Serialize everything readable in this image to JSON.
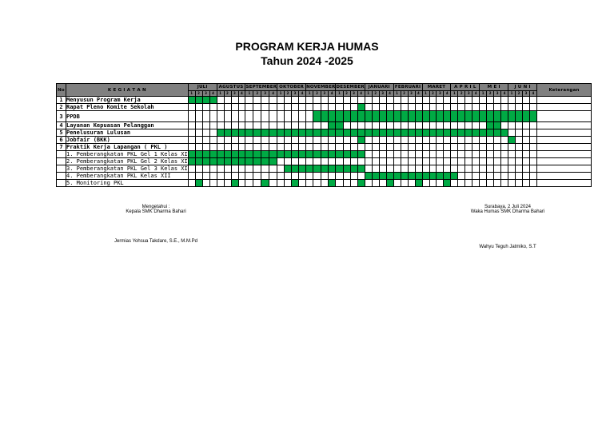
{
  "header": {
    "title": "PROGRAM KERJA HUMAS",
    "subtitle": "Tahun 2024 -2025"
  },
  "table": {
    "col_no": "No",
    "col_activity": "K E G I A T A N",
    "col_note": "Keterangan",
    "months": [
      "JULI",
      "AGUSTUS",
      "SEPTEMBER",
      "OKTOBER",
      "NOVEMBER",
      "DESEMBER",
      "JANUARI",
      "FEBRUARI",
      "MARET",
      "A P R I L",
      "M E I",
      "J U N I"
    ],
    "weeks": [
      "1",
      "2",
      "3",
      "4"
    ],
    "bar_color": "#00aa44",
    "rows": [
      {
        "no": "1",
        "activity": "Menyusun Program Kerja",
        "sub": false,
        "weeks": [
          1,
          2,
          3,
          4
        ]
      },
      {
        "no": "2",
        "activity": "Rapat Pleno Komite Sekolah",
        "sub": false,
        "weeks": [
          24
        ]
      },
      {
        "no": "3",
        "activity": "PPDB",
        "sub": false,
        "weeks": [
          18,
          19,
          20,
          21,
          22,
          23,
          24,
          25,
          26,
          27,
          28,
          29,
          30,
          31,
          32,
          33,
          34,
          35,
          36,
          37,
          38,
          39,
          40,
          41,
          42,
          43,
          44,
          45,
          46,
          47,
          48
        ],
        "tall": true
      },
      {
        "no": "4",
        "activity": "Layanan Kepuasan Pelanggan",
        "sub": false,
        "weeks": [
          20,
          21,
          42,
          43
        ]
      },
      {
        "no": "5",
        "activity": "Penelusuran Lulusan",
        "sub": false,
        "weeks": [
          5,
          6,
          7,
          8,
          9,
          10,
          11,
          12,
          13,
          14,
          15,
          16,
          17,
          18,
          19,
          20,
          21,
          22,
          23,
          24,
          25,
          26,
          27,
          28,
          29,
          30,
          31,
          32,
          33,
          34,
          35,
          36,
          37,
          38,
          39,
          40,
          41,
          42,
          43,
          44
        ]
      },
      {
        "no": "6",
        "activity": "Jobfair (BKK)",
        "sub": false,
        "weeks": [
          24,
          45
        ]
      },
      {
        "no": "7",
        "activity": "Praktik Kerja Lapangan ( PKL )",
        "sub": false,
        "weeks": []
      },
      {
        "no": "",
        "activity": "1. Pemberangkatan PKL Gel 1 Kelas XI",
        "sub": true,
        "weeks": [
          1,
          2,
          3,
          4,
          5,
          6,
          7,
          8,
          9,
          10,
          11,
          12,
          13,
          14,
          15,
          16,
          17,
          18,
          19,
          20,
          21,
          22,
          23,
          24
        ]
      },
      {
        "no": "",
        "activity": "2. Pemberangkatan PKL Gel 2 Kelas XI",
        "sub": true,
        "weeks": [
          1,
          2,
          3,
          4,
          5,
          6,
          7,
          8,
          9,
          10,
          11,
          12
        ]
      },
      {
        "no": "",
        "activity": "3. Pemberangkatan PKL Gel 3 Kelas XI",
        "sub": true,
        "weeks": [
          14,
          15,
          16,
          17,
          18,
          19,
          20,
          21,
          22,
          23,
          24
        ]
      },
      {
        "no": "",
        "activity": "4. Pemberangkatan PKL Kelas XII",
        "sub": true,
        "weeks": [
          25,
          26,
          27,
          28,
          29,
          30,
          31,
          32,
          33,
          34,
          35,
          36,
          37
        ]
      },
      {
        "no": "",
        "activity": "5. Monitoring PKL",
        "sub": true,
        "weeks": [
          2,
          7,
          11,
          15,
          20,
          24,
          28,
          32,
          36
        ]
      }
    ]
  },
  "signatures": {
    "left_line1": "Mengetahui :",
    "left_line2": "Kepala SMK Dharma Bahari",
    "left_name": "Jermias Yohsua Takdare, S.E., M.M.Pd",
    "right_line1": "Surabaya, 2 Juli 2024",
    "right_line2": "Waka Humas SMK Dharma Bahari",
    "right_name": "Wahyu Teguh Jatmiko, S.T"
  }
}
